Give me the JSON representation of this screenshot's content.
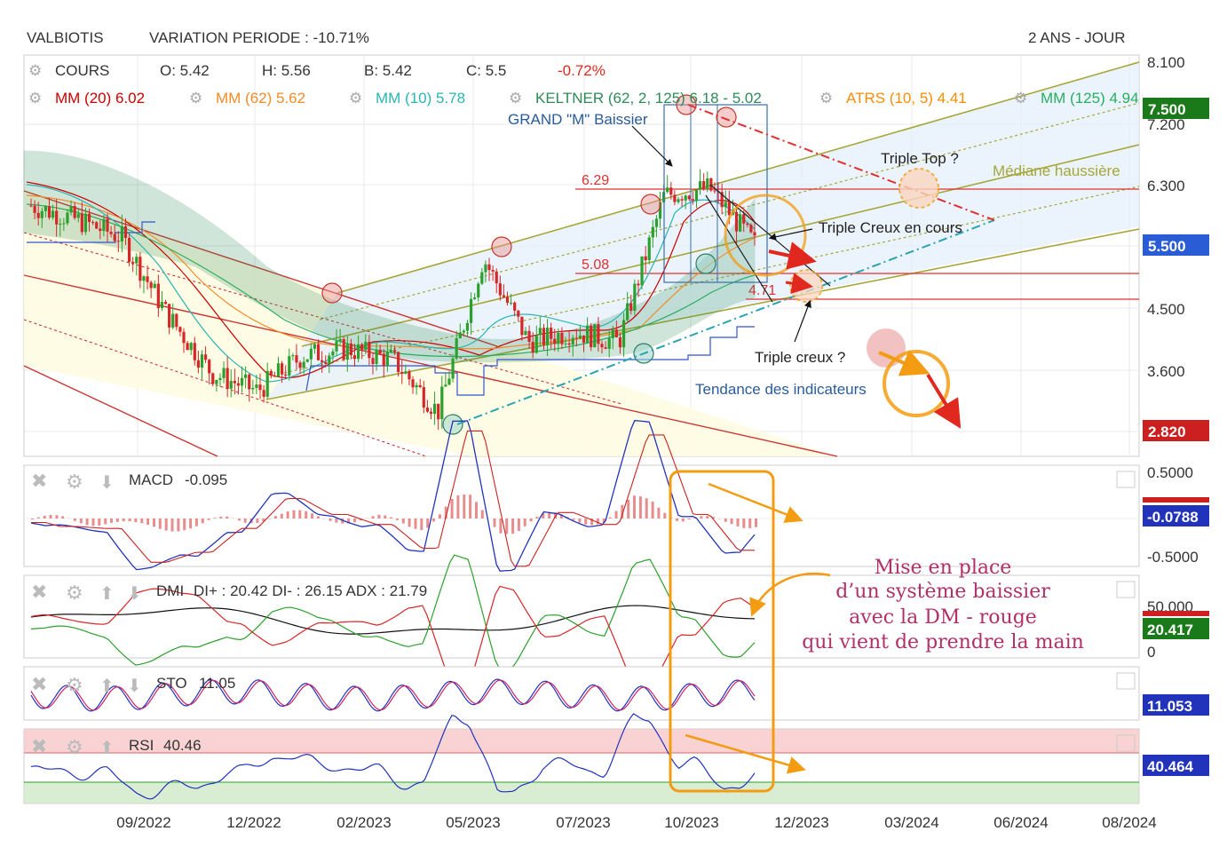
{
  "header": {
    "symbol": "VALBIOTIS",
    "variation": "VARIATION PERIODE : -10.71%",
    "period": "2 ANS - JOUR"
  },
  "legend": {
    "cours": "COURS",
    "open": "O: 5.42",
    "high": "H: 5.56",
    "low": "B: 5.42",
    "close": "C: 5.5",
    "change": "-0.72%",
    "mm20": "MM (20) 6.02",
    "mm62": "MM (62) 5.62",
    "mm10": "MM (10) 5.78",
    "keltner": "KELTNER (62, 2, 125) 6.18 - 5.02",
    "atrs": "ATRS (10, 5) 4.41",
    "mm125": "MM (125) 4.94"
  },
  "annotations": {
    "grand_m": "GRAND \"M\" Baissier",
    "triple_top": "Triple Top ?",
    "mediane": "Médiane haussière",
    "triple_creux_cours": "Triple Creux en cours",
    "triple_creux": "Triple creux ?",
    "tendance": "Tendance des indicateurs",
    "level_629": "6.29",
    "level_508": "5.08",
    "level_471": "4.71",
    "note_line1": "Mise en place",
    "note_line2": "d’un système baissier",
    "note_line3": "avec la DM - rouge",
    "note_line4": "qui vient de prendre la main"
  },
  "price_axis": {
    "ticks": [
      "8.100",
      "7.200",
      "6.300",
      "4.500",
      "3.600"
    ],
    "badge_top": "7.500",
    "badge_mid": "5.500",
    "badge_low": "2.820"
  },
  "macd": {
    "label": "MACD",
    "value": "-0.095",
    "axis_top": "0.5000",
    "axis_bottom": "-0.5000",
    "badge": "-0.0788"
  },
  "dmi": {
    "label": "DMI",
    "value": "DI+ : 20.42 DI- : 26.15 ADX : 21.79",
    "axis_top": "50.000",
    "axis_bottom": "0",
    "badge": "20.417"
  },
  "sto": {
    "label": "STO",
    "value": "11.05",
    "badge": "11.053"
  },
  "rsi": {
    "label": "RSI",
    "value": "40.46",
    "badge": "40.464"
  },
  "x_axis": [
    "09/2022",
    "12/2022",
    "02/2023",
    "05/2023",
    "07/2023",
    "10/2023",
    "12/2023",
    "03/2024",
    "06/2024",
    "08/2024"
  ],
  "colors": {
    "up": "#2ca02c",
    "down": "#d62728",
    "mm20": "#cc0000",
    "mm62": "#f28c28",
    "mm10": "#2bb5b5",
    "keltner": "#2e8b57",
    "atrs": "#ff8c00",
    "mm125": "#27ae60",
    "annotation_orange": "#f39c12",
    "note": "#b0306a"
  },
  "chart_data": {
    "type": "line",
    "title": "VALBIOTIS",
    "x": [
      "2022-07",
      "2022-08",
      "2022-09",
      "2022-10",
      "2022-11",
      "2022-12",
      "2023-01",
      "2023-02",
      "2023-03",
      "2023-04",
      "2023-05",
      "2023-06",
      "2023-07",
      "2023-08",
      "2023-09",
      "2023-10",
      "2023-11"
    ],
    "series": [
      {
        "name": "COURS",
        "values": [
          6.05,
          5.85,
          5.6,
          4.5,
          3.65,
          3.4,
          3.9,
          4.0,
          3.85,
          3.1,
          5.3,
          4.1,
          4.25,
          4.1,
          6.2,
          6.3,
          5.5
        ]
      }
    ],
    "ylim": [
      2.5,
      8.3
    ],
    "horizontal_levels": [
      6.29,
      5.08,
      4.71
    ],
    "indicators": {
      "MACD": -0.095,
      "DI+": 20.42,
      "DI-": 26.15,
      "ADX": 21.79,
      "STO": 11.05,
      "RSI": 40.46
    }
  }
}
